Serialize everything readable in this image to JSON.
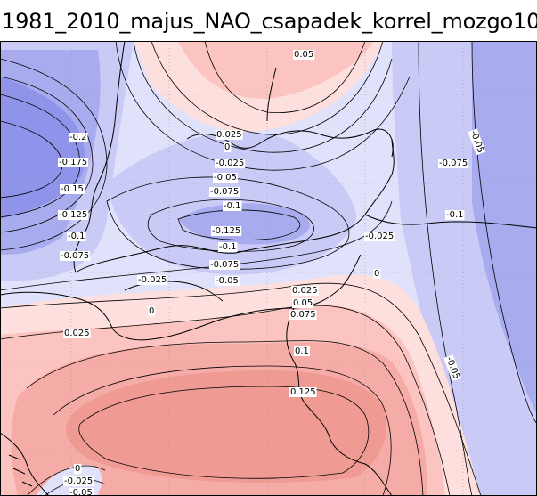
{
  "title": "1981_2010_majus_NAO_csapadek_korrel_mozgo10",
  "colors": {
    "neg_strong": "#8f93ea",
    "neg_mid": "#a9abef",
    "neg_light": "#c9cbf6",
    "neg_pale": "#e0e1fa",
    "pos_pale": "#fde0de",
    "pos_light": "#fbc4c0",
    "pos_mid": "#f6aca6",
    "pos_strong": "#f09a94",
    "contour": "#000000",
    "border": "#000000",
    "grid": "#9a9a9a"
  },
  "contour_labels": [
    "0.05",
    "0.025",
    "0",
    "-0.025",
    "-0.05",
    "-0.075",
    "-0.1",
    "-0.125",
    "-0.1",
    "-0.075",
    "-0.05",
    "-0.025",
    "-0.2",
    "-0.175",
    "-0.15",
    "-0.125",
    "-0.1",
    "-0.075",
    "-0.05",
    "-0.075",
    "-0.1",
    "-0.025",
    "0",
    "0.025",
    "0.05",
    "0.075",
    "0",
    "0.025",
    "0.1",
    "0.125",
    "-0.05",
    "0",
    "-0.025",
    "-0.05"
  ]
}
